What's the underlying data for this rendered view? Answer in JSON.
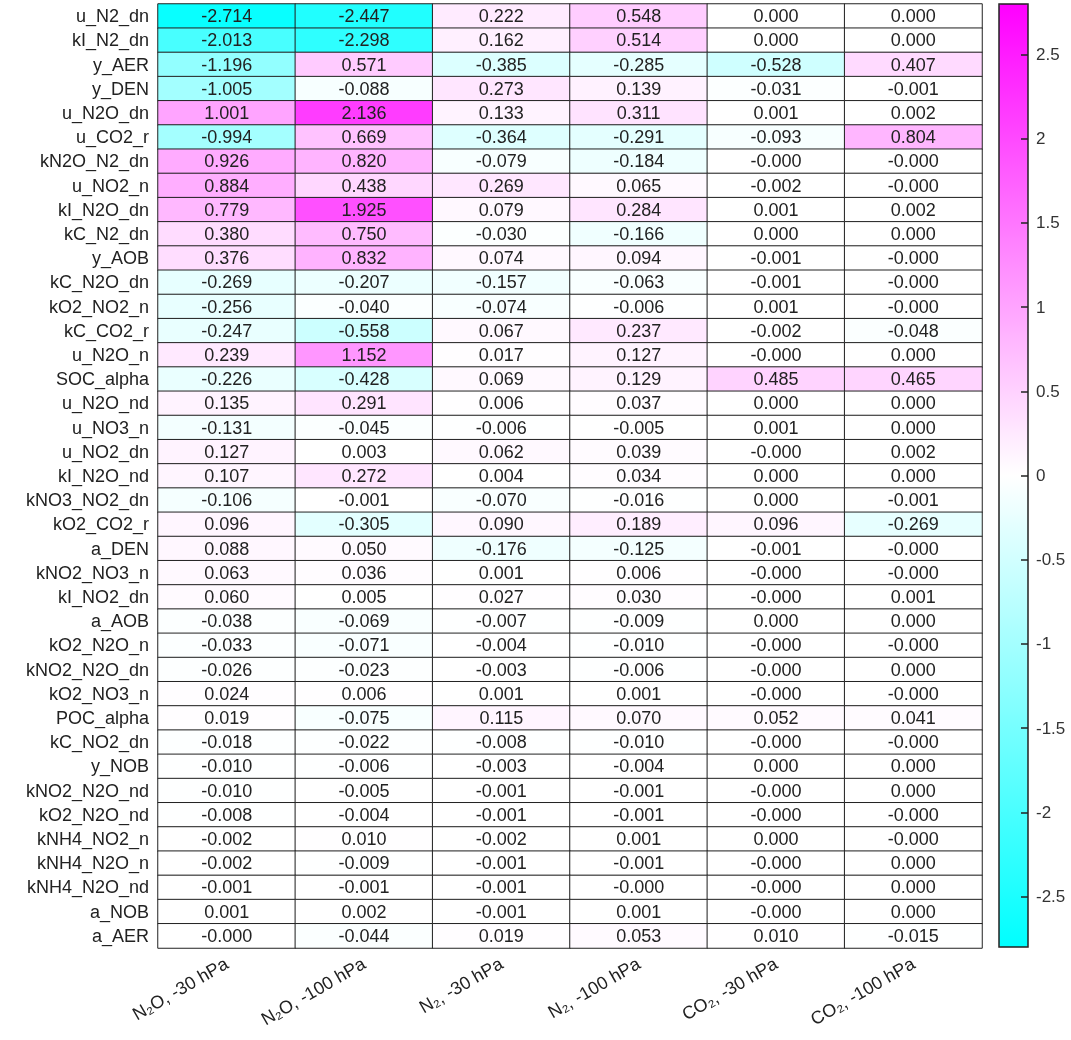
{
  "chart_data": {
    "type": "heatmap",
    "categories": [
      "N₂O, -30 hPa",
      "N₂O, -100 hPa",
      "N₂, -30 hPa",
      "N₂, -100 hPa",
      "CO₂, -30 hPa",
      "CO₂, -100 hPa"
    ],
    "y_categories": [
      "u_N2_dn",
      "kI_N2_dn",
      "y_AER",
      "y_DEN",
      "u_N2O_dn",
      "u_CO2_r",
      "kN2O_N2_dn",
      "u_NO2_n",
      "kI_N2O_dn",
      "kC_N2_dn",
      "y_AOB",
      "kC_N2O_dn",
      "kO2_NO2_n",
      "kC_CO2_r",
      "u_N2O_n",
      "SOC_alpha",
      "u_N2O_nd",
      "u_NO3_n",
      "u_NO2_dn",
      "kI_N2O_nd",
      "kNO3_NO2_dn",
      "kO2_CO2_r",
      "a_DEN",
      "kNO2_NO3_n",
      "kI_NO2_dn",
      "a_AOB",
      "kO2_N2O_n",
      "kNO2_N2O_dn",
      "kO2_NO3_n",
      "POC_alpha",
      "kC_NO2_dn",
      "y_NOB",
      "kNO2_N2O_nd",
      "kO2_N2O_nd",
      "kNH4_NO2_n",
      "kNH4_N2O_n",
      "kNH4_N2O_nd",
      "a_NOB",
      "a_AER"
    ],
    "cells": [
      [
        -2.714,
        -2.447,
        0.222,
        0.548,
        0,
        0
      ],
      [
        -2.013,
        -2.298,
        0.162,
        0.514,
        0,
        0
      ],
      [
        -1.196,
        0.571,
        -0.385,
        -0.285,
        -0.528,
        0.407
      ],
      [
        -1.005,
        -0.088,
        0.273,
        0.139,
        -0.031,
        -0.001
      ],
      [
        1.001,
        2.136,
        0.133,
        0.311,
        0.001,
        0.002
      ],
      [
        -0.994,
        0.669,
        -0.364,
        -0.291,
        -0.093,
        0.804
      ],
      [
        0.926,
        0.82,
        -0.079,
        -0.184,
        0,
        0
      ],
      [
        0.884,
        0.438,
        0.269,
        0.065,
        -0.002,
        0
      ],
      [
        0.779,
        1.925,
        0.079,
        0.284,
        0.001,
        0.002
      ],
      [
        0.38,
        0.75,
        -0.03,
        -0.166,
        0,
        0
      ],
      [
        0.376,
        0.832,
        0.074,
        0.094,
        -0.001,
        0
      ],
      [
        -0.269,
        -0.207,
        -0.157,
        -0.063,
        -0.001,
        0
      ],
      [
        -0.256,
        -0.04,
        -0.074,
        -0.006,
        0.001,
        0
      ],
      [
        -0.247,
        -0.558,
        0.067,
        0.237,
        -0.002,
        -0.048
      ],
      [
        0.239,
        1.152,
        0.017,
        0.127,
        0,
        0
      ],
      [
        -0.226,
        -0.428,
        0.069,
        0.129,
        0.485,
        0.465
      ],
      [
        0.135,
        0.291,
        0.006,
        0.037,
        0,
        0
      ],
      [
        -0.131,
        -0.045,
        -0.006,
        -0.005,
        0.001,
        0
      ],
      [
        0.127,
        0.003,
        0.062,
        0.039,
        0,
        0.002
      ],
      [
        0.107,
        0.272,
        0.004,
        0.034,
        0,
        0
      ],
      [
        -0.106,
        -0.001,
        -0.07,
        -0.016,
        0,
        -0.001
      ],
      [
        0.096,
        -0.305,
        0.09,
        0.189,
        0.096,
        -0.269
      ],
      [
        0.088,
        0.05,
        -0.176,
        -0.125,
        -0.001,
        0
      ],
      [
        0.063,
        0.036,
        0.001,
        0.006,
        0,
        0
      ],
      [
        0.06,
        0.005,
        0.027,
        0.03,
        0,
        0.001
      ],
      [
        -0.038,
        -0.069,
        -0.007,
        -0.009,
        0,
        0
      ],
      [
        -0.033,
        -0.071,
        -0.004,
        -0.01,
        0,
        0
      ],
      [
        -0.026,
        -0.023,
        -0.003,
        -0.006,
        0,
        0
      ],
      [
        0.024,
        0.006,
        0.001,
        0.001,
        0,
        0
      ],
      [
        0.019,
        -0.075,
        0.115,
        0.07,
        0.052,
        0.041
      ],
      [
        -0.018,
        -0.022,
        -0.008,
        -0.01,
        0,
        0
      ],
      [
        -0.01,
        -0.006,
        -0.003,
        -0.004,
        0,
        0
      ],
      [
        -0.01,
        -0.005,
        -0.001,
        -0.001,
        0,
        0
      ],
      [
        -0.008,
        -0.004,
        -0.001,
        -0.001,
        0,
        0
      ],
      [
        -0.002,
        0.01,
        -0.002,
        0.001,
        0,
        0
      ],
      [
        -0.002,
        -0.009,
        -0.001,
        -0.001,
        0,
        0
      ],
      [
        -0.001,
        -0.001,
        -0.001,
        0,
        0,
        0
      ],
      [
        0.001,
        0.002,
        -0.001,
        0.001,
        0,
        0
      ],
      [
        0,
        -0.044,
        0.019,
        0.053,
        0.01,
        -0.015
      ]
    ],
    "cell_labels": [
      [
        "-2.714",
        "-2.447",
        "0.222",
        "0.548",
        "0.000",
        "0.000"
      ],
      [
        "-2.013",
        "-2.298",
        "0.162",
        "0.514",
        "0.000",
        "0.000"
      ],
      [
        "-1.196",
        "0.571",
        "-0.385",
        "-0.285",
        "-0.528",
        "0.407"
      ],
      [
        "-1.005",
        "-0.088",
        "0.273",
        "0.139",
        "-0.031",
        "-0.001"
      ],
      [
        "1.001",
        "2.136",
        "0.133",
        "0.311",
        "0.001",
        "0.002"
      ],
      [
        "-0.994",
        "0.669",
        "-0.364",
        "-0.291",
        "-0.093",
        "0.804"
      ],
      [
        "0.926",
        "0.820",
        "-0.079",
        "-0.184",
        "-0.000",
        "-0.000"
      ],
      [
        "0.884",
        "0.438",
        "0.269",
        "0.065",
        "-0.002",
        "-0.000"
      ],
      [
        "0.779",
        "1.925",
        "0.079",
        "0.284",
        "0.001",
        "0.002"
      ],
      [
        "0.380",
        "0.750",
        "-0.030",
        "-0.166",
        "0.000",
        "0.000"
      ],
      [
        "0.376",
        "0.832",
        "0.074",
        "0.094",
        "-0.001",
        "-0.000"
      ],
      [
        "-0.269",
        "-0.207",
        "-0.157",
        "-0.063",
        "-0.001",
        "-0.000"
      ],
      [
        "-0.256",
        "-0.040",
        "-0.074",
        "-0.006",
        "0.001",
        "-0.000"
      ],
      [
        "-0.247",
        "-0.558",
        "0.067",
        "0.237",
        "-0.002",
        "-0.048"
      ],
      [
        "0.239",
        "1.152",
        "0.017",
        "0.127",
        "-0.000",
        "0.000"
      ],
      [
        "-0.226",
        "-0.428",
        "0.069",
        "0.129",
        "0.485",
        "0.465"
      ],
      [
        "0.135",
        "0.291",
        "0.006",
        "0.037",
        "0.000",
        "0.000"
      ],
      [
        "-0.131",
        "-0.045",
        "-0.006",
        "-0.005",
        "0.001",
        "0.000"
      ],
      [
        "0.127",
        "0.003",
        "0.062",
        "0.039",
        "-0.000",
        "0.002"
      ],
      [
        "0.107",
        "0.272",
        "0.004",
        "0.034",
        "0.000",
        "0.000"
      ],
      [
        "-0.106",
        "-0.001",
        "-0.070",
        "-0.016",
        "0.000",
        "-0.001"
      ],
      [
        "0.096",
        "-0.305",
        "0.090",
        "0.189",
        "0.096",
        "-0.269"
      ],
      [
        "0.088",
        "0.050",
        "-0.176",
        "-0.125",
        "-0.001",
        "-0.000"
      ],
      [
        "0.063",
        "0.036",
        "0.001",
        "0.006",
        "-0.000",
        "-0.000"
      ],
      [
        "0.060",
        "0.005",
        "0.027",
        "0.030",
        "-0.000",
        "0.001"
      ],
      [
        "-0.038",
        "-0.069",
        "-0.007",
        "-0.009",
        "0.000",
        "0.000"
      ],
      [
        "-0.033",
        "-0.071",
        "-0.004",
        "-0.010",
        "-0.000",
        "-0.000"
      ],
      [
        "-0.026",
        "-0.023",
        "-0.003",
        "-0.006",
        "-0.000",
        "0.000"
      ],
      [
        "0.024",
        "0.006",
        "0.001",
        "0.001",
        "-0.000",
        "-0.000"
      ],
      [
        "0.019",
        "-0.075",
        "0.115",
        "0.070",
        "0.052",
        "0.041"
      ],
      [
        "-0.018",
        "-0.022",
        "-0.008",
        "-0.010",
        "-0.000",
        "-0.000"
      ],
      [
        "-0.010",
        "-0.006",
        "-0.003",
        "-0.004",
        "0.000",
        "0.000"
      ],
      [
        "-0.010",
        "-0.005",
        "-0.001",
        "-0.001",
        "-0.000",
        "0.000"
      ],
      [
        "-0.008",
        "-0.004",
        "-0.001",
        "-0.001",
        "-0.000",
        "-0.000"
      ],
      [
        "-0.002",
        "0.010",
        "-0.002",
        "0.001",
        "0.000",
        "-0.000"
      ],
      [
        "-0.002",
        "-0.009",
        "-0.001",
        "-0.001",
        "-0.000",
        "0.000"
      ],
      [
        "-0.001",
        "-0.001",
        "-0.001",
        "-0.000",
        "-0.000",
        "0.000"
      ],
      [
        "0.001",
        "0.002",
        "-0.001",
        "0.001",
        "-0.000",
        "0.000"
      ],
      [
        "-0.000",
        "-0.044",
        "0.019",
        "0.053",
        "0.010",
        "-0.015"
      ]
    ],
    "clim": [
      -2.8,
      2.8
    ],
    "cticks": [
      -2.5,
      -2,
      -1.5,
      -1,
      -0.5,
      0,
      0.5,
      1,
      1.5,
      2,
      2.5
    ]
  }
}
